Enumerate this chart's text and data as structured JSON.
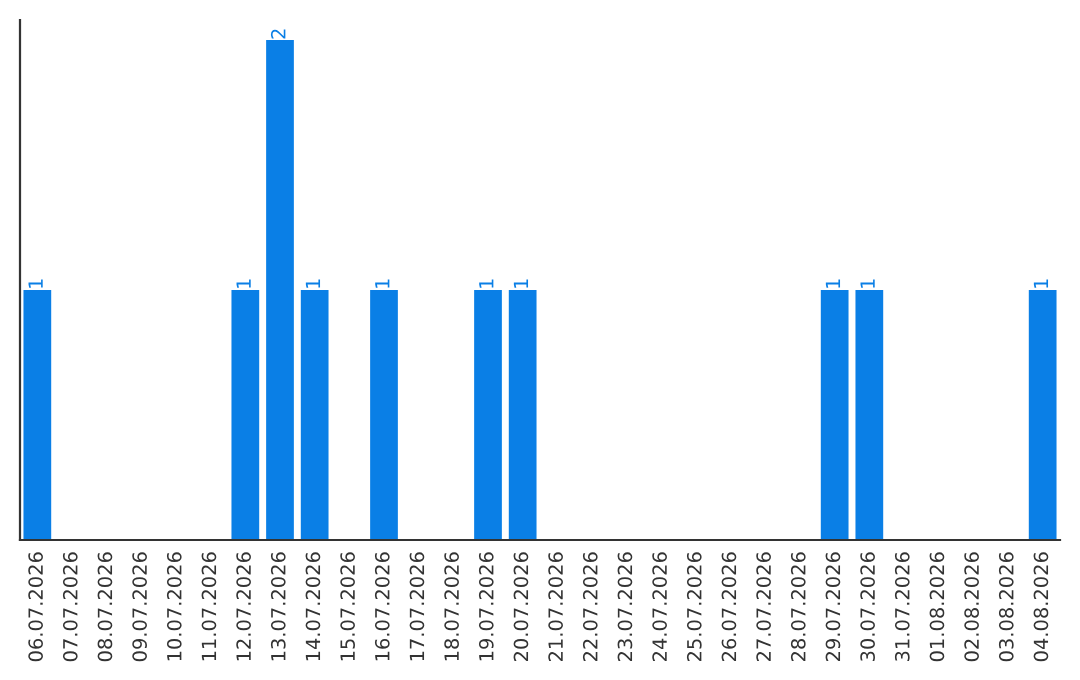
{
  "chart_data": {
    "type": "bar",
    "categories": [
      "06.07.2026",
      "07.07.2026",
      "08.07.2026",
      "09.07.2026",
      "10.07.2026",
      "11.07.2026",
      "12.07.2026",
      "13.07.2026",
      "14.07.2026",
      "15.07.2026",
      "16.07.2026",
      "17.07.2026",
      "18.07.2026",
      "19.07.2026",
      "20.07.2026",
      "21.07.2026",
      "22.07.2026",
      "23.07.2026",
      "24.07.2026",
      "25.07.2026",
      "26.07.2026",
      "27.07.2026",
      "28.07.2026",
      "29.07.2026",
      "30.07.2026",
      "31.07.2026",
      "01.08.2026",
      "02.08.2026",
      "03.08.2026",
      "04.08.2026"
    ],
    "values": [
      1,
      0,
      0,
      0,
      0,
      0,
      1,
      2,
      1,
      0,
      1,
      0,
      0,
      1,
      1,
      0,
      0,
      0,
      0,
      0,
      0,
      0,
      0,
      1,
      1,
      0,
      0,
      0,
      0,
      1
    ],
    "value_labels": [
      "1",
      null,
      null,
      null,
      null,
      null,
      "1",
      "2",
      "1",
      null,
      "1",
      null,
      null,
      "1",
      "1",
      null,
      null,
      null,
      null,
      null,
      null,
      null,
      null,
      "1",
      "1",
      null,
      null,
      null,
      null,
      "1"
    ],
    "color": "#0a7fe6",
    "grid": false,
    "legend": false
  }
}
